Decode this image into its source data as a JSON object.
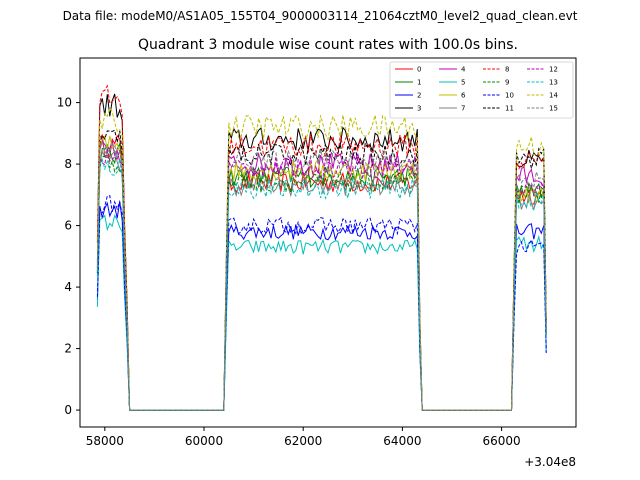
{
  "suptitle": "Data file: modeM0/AS1A05_155T04_9000003114_21064cztM0_level2_quad_clean.evt",
  "chart_data": {
    "type": "line",
    "title": "Quadrant 3 module wise count rates with 100.0s bins.",
    "xlabel": "",
    "ylabel": "",
    "x_offset_label": "+3.04e8",
    "xlim": [
      57500,
      67500
    ],
    "ylim": [
      -0.55,
      11.45
    ],
    "xticks": [
      58000,
      60000,
      62000,
      64000,
      66000
    ],
    "xtick_labels": [
      "58000",
      "60000",
      "62000",
      "64000",
      "66000"
    ],
    "yticks": [
      0,
      2,
      4,
      6,
      8,
      10
    ],
    "ytick_labels": [
      "0",
      "2",
      "4",
      "6",
      "8",
      "10"
    ],
    "grid": false,
    "legend": {
      "placement": "top-right",
      "columns": 4
    },
    "segments": [
      {
        "start": 57850,
        "end": 58450,
        "step": 50
      },
      {
        "start": 60450,
        "end": 64350,
        "step": 50
      },
      {
        "start": 66250,
        "end": 66900,
        "step": 50
      }
    ],
    "series": [
      {
        "name": "0",
        "color": "#ff0000",
        "dashed": false,
        "levels": [
          8.6,
          7.4,
          7.0
        ]
      },
      {
        "name": "1",
        "color": "#008000",
        "dashed": false,
        "levels": [
          8.3,
          7.6,
          7.1
        ]
      },
      {
        "name": "2",
        "color": "#0000ff",
        "dashed": false,
        "levels": [
          6.5,
          5.8,
          5.8
        ]
      },
      {
        "name": "3",
        "color": "#000000",
        "dashed": false,
        "levels": [
          9.9,
          8.8,
          8.1
        ]
      },
      {
        "name": "4",
        "color": "#bf00bf",
        "dashed": false,
        "levels": [
          8.4,
          8.0,
          7.6
        ]
      },
      {
        "name": "5",
        "color": "#00bfbf",
        "dashed": false,
        "levels": [
          6.1,
          5.3,
          5.4
        ]
      },
      {
        "name": "6",
        "color": "#bfbf00",
        "dashed": false,
        "levels": [
          8.6,
          7.8,
          7.0
        ]
      },
      {
        "name": "7",
        "color": "#808080",
        "dashed": false,
        "levels": [
          8.1,
          7.3,
          6.8
        ]
      },
      {
        "name": "8",
        "color": "#ff0000",
        "dashed": true,
        "levels": [
          10.1,
          8.6,
          8.1
        ]
      },
      {
        "name": "9",
        "color": "#008000",
        "dashed": true,
        "levels": [
          8.1,
          7.4,
          7.0
        ]
      },
      {
        "name": "10",
        "color": "#0000ff",
        "dashed": true,
        "levels": [
          6.7,
          6.0,
          5.3
        ]
      },
      {
        "name": "11",
        "color": "#000000",
        "dashed": true,
        "levels": [
          8.8,
          8.3,
          8.2
        ]
      },
      {
        "name": "12",
        "color": "#bf00bf",
        "dashed": true,
        "levels": [
          8.2,
          7.9,
          7.2
        ]
      },
      {
        "name": "13",
        "color": "#00bfbf",
        "dashed": true,
        "levels": [
          7.9,
          7.2,
          6.8
        ]
      },
      {
        "name": "14",
        "color": "#bfbf00",
        "dashed": true,
        "levels": [
          9.4,
          9.2,
          8.6
        ]
      },
      {
        "name": "15",
        "color": "#808080",
        "dashed": true,
        "levels": [
          8.4,
          8.1,
          7.5
        ]
      }
    ]
  }
}
